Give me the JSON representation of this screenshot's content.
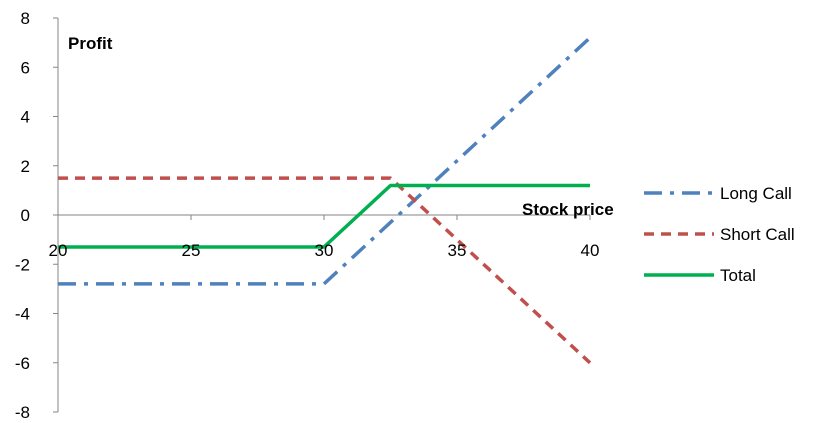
{
  "chart_data": {
    "type": "line",
    "title": "",
    "xlabel": "Stock price",
    "ylabel": "Profit",
    "xlim": [
      20,
      40
    ],
    "ylim": [
      -8,
      8
    ],
    "x_ticks": [
      "20",
      "25",
      "30",
      "35",
      "40"
    ],
    "y_ticks": [
      "8",
      "6",
      "4",
      "2",
      "0",
      "-2",
      "-4",
      "-6",
      "-8"
    ],
    "grid": false,
    "legend_position": "right",
    "series": [
      {
        "name": "Long Call",
        "color": "#4F81BD",
        "dash": "dash-dot",
        "points": [
          [
            20,
            -2.8
          ],
          [
            30,
            -2.8
          ],
          [
            40,
            7.2
          ]
        ]
      },
      {
        "name": "Short Call",
        "color": "#C0504D",
        "dash": "dash",
        "points": [
          [
            20,
            1.5
          ],
          [
            32.5,
            1.5
          ],
          [
            40,
            -6
          ]
        ]
      },
      {
        "name": "Total",
        "color": "#00B050",
        "dash": "solid",
        "points": [
          [
            20,
            -1.3
          ],
          [
            30,
            -1.3
          ],
          [
            32.5,
            1.2
          ],
          [
            40,
            1.2
          ]
        ]
      }
    ]
  }
}
